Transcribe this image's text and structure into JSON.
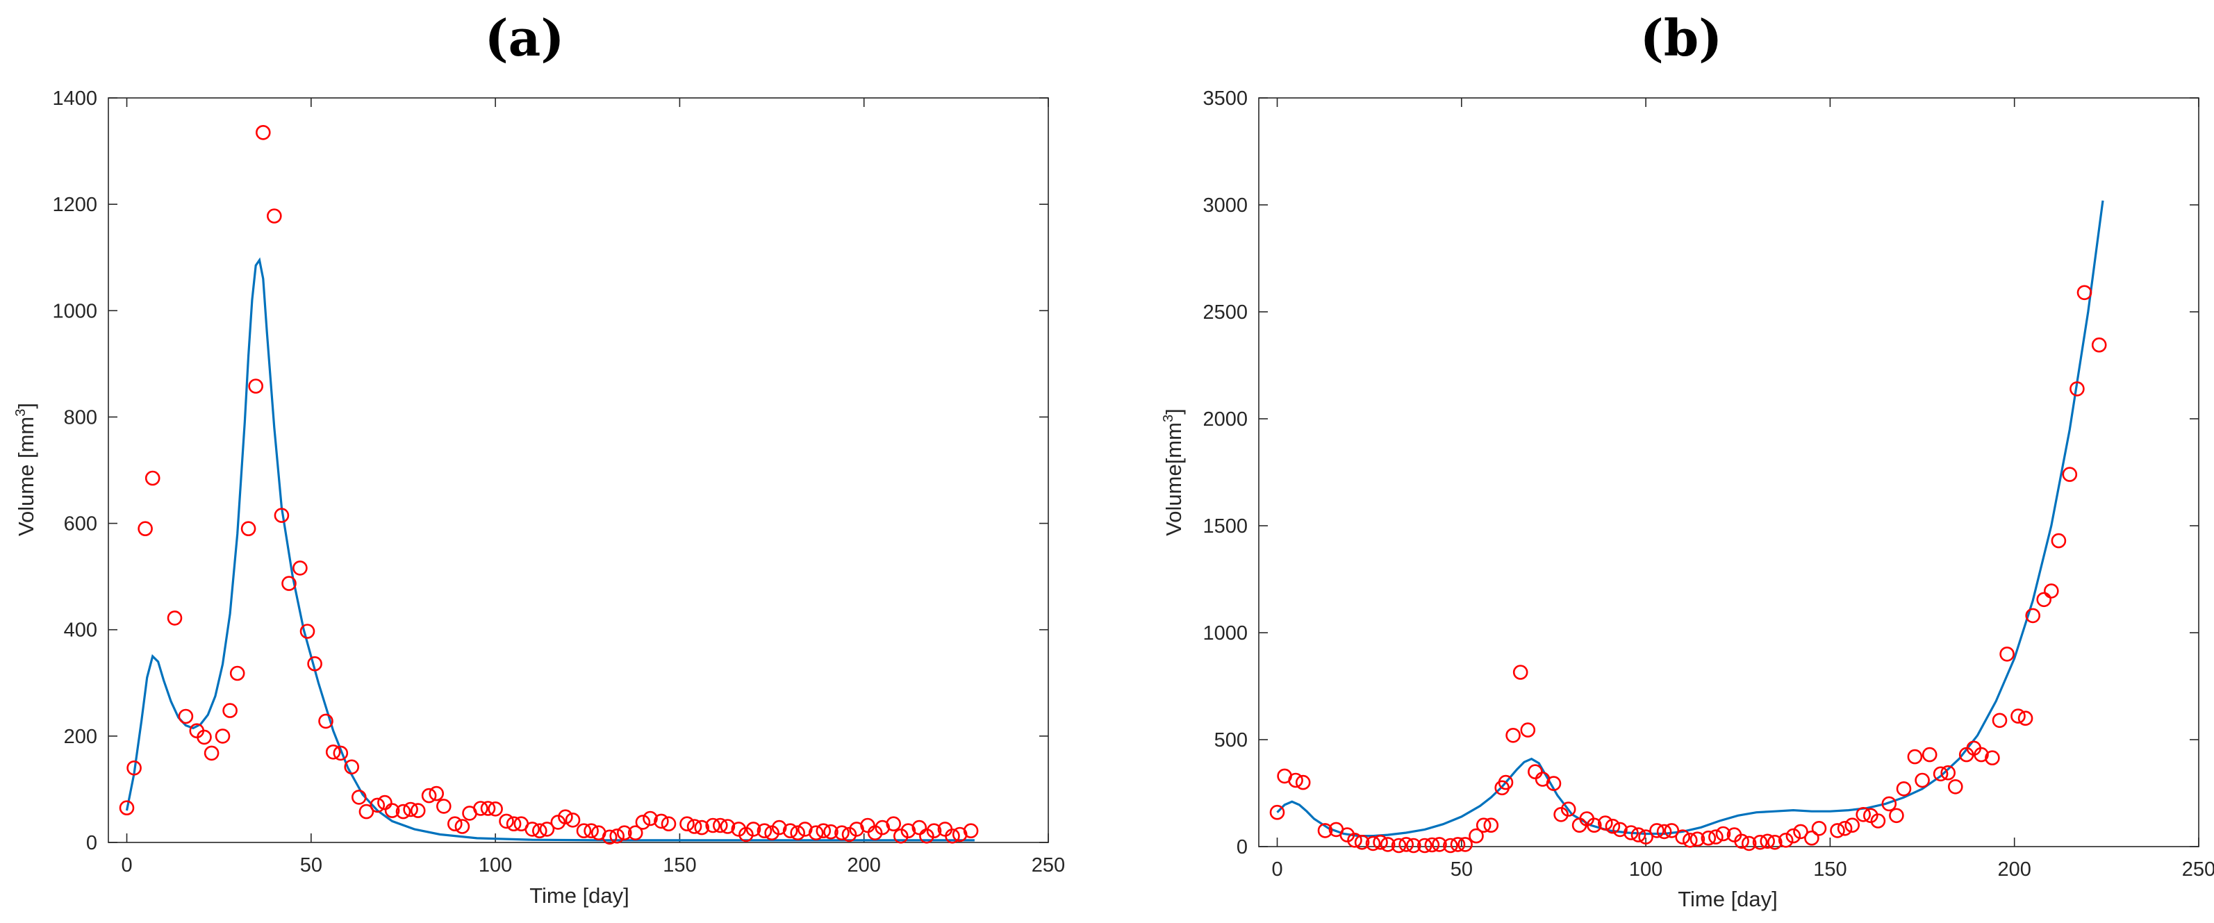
{
  "colors": {
    "line": "#0072BD",
    "markers": "#FF0000",
    "axes": "#262626"
  },
  "chart_data": [
    {
      "type": "line+scatter",
      "title": "(a)",
      "xlabel": "Time [day]",
      "ylabel_main": "Volume [mm",
      "ylabel_sup": "3",
      "ylabel_end": "]",
      "xlim": [
        -5,
        250
      ],
      "ylim": [
        0,
        1400
      ],
      "xticks": [
        0,
        50,
        100,
        150,
        200,
        250
      ],
      "yticks": [
        0,
        200,
        400,
        600,
        800,
        1000,
        1200,
        1400
      ],
      "legend": "none",
      "grid": false,
      "line": {
        "x": [
          0,
          2,
          4,
          5.5,
          7,
          8.5,
          10,
          12,
          14,
          16,
          18,
          20,
          22,
          24,
          26,
          28,
          30,
          32,
          33,
          34,
          35,
          36,
          37,
          38,
          40,
          42,
          45,
          48,
          52,
          56,
          60,
          64,
          68,
          72,
          78,
          85,
          95,
          110,
          130,
          150,
          170,
          200,
          230
        ],
        "y": [
          60,
          130,
          230,
          310,
          350,
          340,
          305,
          265,
          235,
          220,
          215,
          222,
          240,
          275,
          335,
          430,
          580,
          790,
          915,
          1020,
          1085,
          1095,
          1060,
          960,
          780,
          630,
          500,
          400,
          300,
          210,
          140,
          90,
          60,
          40,
          25,
          15,
          8,
          5,
          4,
          4,
          4,
          4,
          4
        ]
      },
      "points": {
        "x": [
          0,
          2,
          5,
          7,
          13,
          16,
          19,
          21,
          23,
          26,
          28,
          30,
          33,
          35,
          37,
          40,
          42,
          44,
          47,
          49,
          51,
          54,
          56,
          58,
          61,
          63,
          65,
          68,
          70,
          72,
          75,
          77,
          79,
          82,
          84,
          86,
          89,
          91,
          93,
          96,
          98,
          100,
          103,
          105,
          107,
          110,
          112,
          114,
          117,
          119,
          121,
          124,
          126,
          128,
          131,
          133,
          135,
          138,
          140,
          142,
          145,
          147,
          152,
          154,
          156,
          159,
          161,
          163,
          166,
          168,
          170,
          173,
          175,
          177,
          180,
          182,
          184,
          187,
          189,
          191,
          194,
          196,
          198,
          201,
          203,
          205,
          208,
          210,
          212,
          215,
          217,
          219,
          222,
          224,
          226,
          229
        ],
        "y": [
          65,
          140,
          590,
          685,
          422,
          237,
          210,
          198,
          168,
          200,
          248,
          318,
          590,
          858,
          1335,
          1178,
          615,
          487,
          516,
          397,
          336,
          228,
          170,
          168,
          142,
          85,
          58,
          70,
          75,
          60,
          58,
          62,
          60,
          88,
          92,
          68,
          35,
          30,
          55,
          64,
          64,
          63,
          40,
          35,
          35,
          25,
          22,
          25,
          38,
          48,
          42,
          22,
          22,
          18,
          10,
          12,
          18,
          18,
          38,
          45,
          40,
          35,
          35,
          30,
          28,
          32,
          32,
          30,
          25,
          15,
          25,
          22,
          18,
          28,
          22,
          18,
          25,
          18,
          22,
          20,
          18,
          15,
          25,
          32,
          18,
          28,
          35,
          12,
          22,
          28,
          12,
          22,
          25,
          12,
          15,
          22
        ]
      }
    },
    {
      "type": "line+scatter",
      "title": "(b)",
      "xlabel": "Time [day]",
      "ylabel_main": "Volume[mm",
      "ylabel_sup": "3",
      "ylabel_end": "]",
      "xlim": [
        -5,
        250
      ],
      "ylim": [
        0,
        3500
      ],
      "xticks": [
        0,
        50,
        100,
        150,
        200,
        250
      ],
      "yticks": [
        0,
        500,
        1000,
        1500,
        2000,
        2500,
        3000,
        3500
      ],
      "legend": "none",
      "grid": false,
      "line": {
        "x": [
          0,
          2,
          4,
          6,
          8,
          10,
          14,
          18,
          22,
          26,
          30,
          35,
          40,
          45,
          50,
          55,
          58,
          61,
          63,
          65,
          67,
          69,
          71,
          73,
          76,
          80,
          85,
          90,
          95,
          100,
          105,
          110,
          115,
          120,
          125,
          130,
          135,
          140,
          145,
          150,
          155,
          160,
          165,
          170,
          175,
          180,
          185,
          190,
          195,
          200,
          205,
          210,
          215,
          220,
          224
        ],
        "y": [
          160,
          195,
          210,
          195,
          165,
          130,
          85,
          60,
          50,
          50,
          55,
          65,
          80,
          105,
          140,
          190,
          230,
          280,
          320,
          360,
          395,
          410,
          390,
          330,
          240,
          150,
          100,
          75,
          65,
          60,
          60,
          70,
          90,
          120,
          145,
          160,
          165,
          170,
          165,
          165,
          170,
          180,
          200,
          230,
          270,
          330,
          410,
          520,
          680,
          880,
          1150,
          1500,
          1950,
          2500,
          3020
        ]
      },
      "points": {
        "x": [
          0,
          2,
          5,
          7,
          13,
          16,
          19,
          21,
          23,
          26,
          28,
          30,
          33,
          35,
          37,
          40,
          42,
          44,
          47,
          49,
          51,
          54,
          56,
          58,
          61,
          62,
          64,
          66,
          68,
          70,
          72,
          75,
          77,
          79,
          82,
          84,
          86,
          89,
          91,
          93,
          96,
          98,
          100,
          103,
          105,
          107,
          110,
          112,
          114,
          117,
          119,
          121,
          124,
          126,
          128,
          131,
          133,
          135,
          138,
          140,
          142,
          145,
          147,
          152,
          154,
          156,
          159,
          161,
          163,
          166,
          168,
          170,
          173,
          175,
          177,
          180,
          182,
          184,
          187,
          189,
          191,
          194,
          196,
          198,
          201,
          203,
          205,
          208,
          210,
          212,
          215,
          217,
          219,
          223
        ],
        "y": [
          160,
          330,
          310,
          300,
          75,
          80,
          55,
          30,
          20,
          15,
          20,
          10,
          5,
          10,
          5,
          5,
          8,
          10,
          5,
          10,
          10,
          50,
          100,
          100,
          275,
          300,
          520,
          815,
          545,
          350,
          315,
          295,
          150,
          175,
          100,
          130,
          100,
          110,
          95,
          80,
          65,
          55,
          45,
          75,
          70,
          75,
          45,
          30,
          35,
          40,
          45,
          60,
          55,
          25,
          15,
          20,
          25,
          20,
          30,
          50,
          70,
          40,
          85,
          75,
          85,
          100,
          150,
          145,
          120,
          200,
          145,
          270,
          420,
          310,
          430,
          340,
          345,
          280,
          430,
          460,
          430,
          415,
          590,
          900,
          610,
          600,
          1080,
          1155,
          1195,
          1430,
          1740,
          2140,
          2590,
          2345
        ]
      }
    }
  ]
}
